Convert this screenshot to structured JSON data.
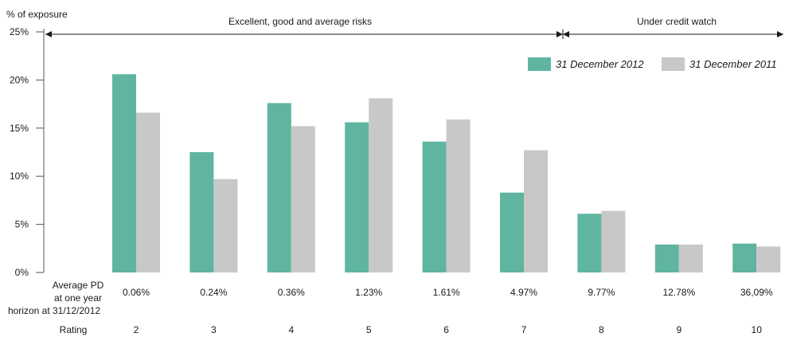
{
  "chart_data": {
    "type": "bar",
    "ylabel": "% of exposure",
    "ylim": [
      0,
      25
    ],
    "yticks": [
      "0%",
      "5%",
      "10%",
      "15%",
      "20%",
      "25%"
    ],
    "ytick_values": [
      0,
      5,
      10,
      15,
      20,
      25
    ],
    "row_labels": {
      "pd_line1": "Average PD",
      "pd_line2": "at one year",
      "pd_line3": "horizon at 31/12/2012",
      "rating": "Rating"
    },
    "categories": [
      "2",
      "3",
      "4",
      "5",
      "6",
      "7",
      "8",
      "9",
      "10"
    ],
    "average_pd": [
      "0.06%",
      "0.24%",
      "0.36%",
      "1.23%",
      "1.61%",
      "4.97%",
      "9.77%",
      "12.78%",
      "36,09%"
    ],
    "series": [
      {
        "name": "31 December 2012",
        "color": "#5fb5a0",
        "values": [
          20.6,
          12.5,
          17.6,
          15.6,
          13.6,
          8.3,
          6.1,
          2.9,
          3.0
        ]
      },
      {
        "name": "31 December 2011",
        "color": "#c8c8c8",
        "values": [
          16.6,
          9.7,
          15.2,
          18.1,
          15.9,
          12.7,
          6.4,
          2.9,
          2.7
        ]
      }
    ],
    "annotations": [
      {
        "text": "Excellent, good and average risks"
      },
      {
        "text": "Under credit watch"
      }
    ],
    "legend_position": "top-right",
    "grid": false
  }
}
